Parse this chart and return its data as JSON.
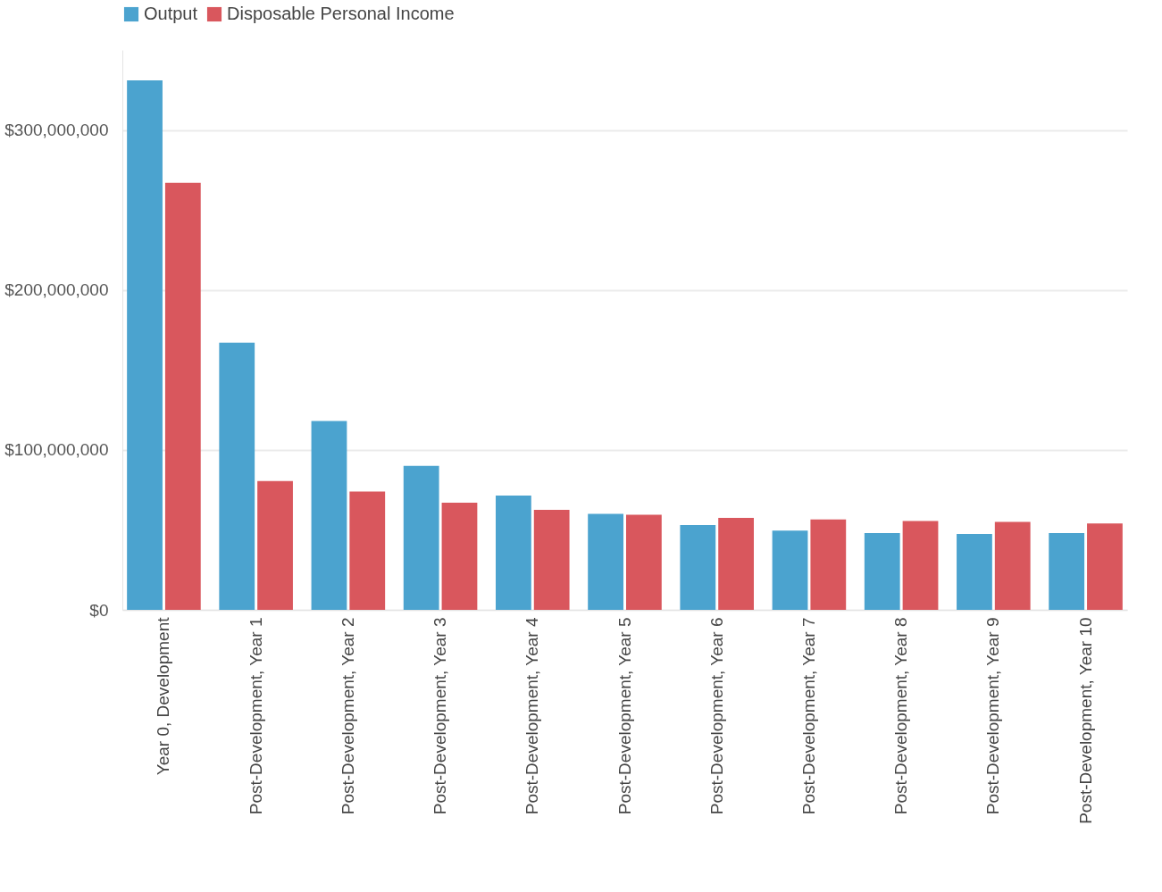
{
  "chart_data": {
    "type": "bar",
    "categories": [
      "Year 0, Development",
      "Post-Development, Year 1",
      "Post-Development, Year 2",
      "Post-Development, Year 3",
      "Post-Development, Year 4",
      "Post-Development, Year 5",
      "Post-Development, Year 6",
      "Post-Development, Year 7",
      "Post-Development, Year 8",
      "Post-Development, Year 9",
      "Post-Development, Year 10"
    ],
    "series": [
      {
        "name": "Output",
        "color": "#4ba3cf",
        "values": [
          331000000,
          167000000,
          118000000,
          90000000,
          71500000,
          60000000,
          53000000,
          49500000,
          48000000,
          47500000,
          48000000
        ]
      },
      {
        "name": "Disposable Personal Income",
        "color": "#d9575d",
        "values": [
          267000000,
          80500000,
          74000000,
          67000000,
          62500000,
          59500000,
          57500000,
          56500000,
          55500000,
          55000000,
          54000000
        ]
      }
    ],
    "ylim": [
      0,
      350000000
    ],
    "yticks": [
      {
        "value": 0,
        "label": "$0"
      },
      {
        "value": 100000000,
        "label": "$100,000,000"
      },
      {
        "value": 200000000,
        "label": "$200,000,000"
      },
      {
        "value": 300000000,
        "label": "$300,000,000"
      }
    ],
    "grid": "y",
    "legend": "top left"
  }
}
